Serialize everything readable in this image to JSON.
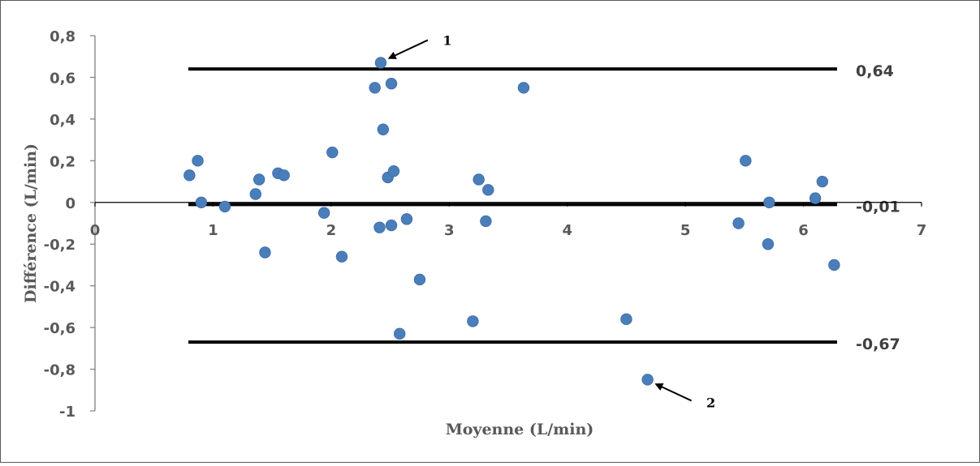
{
  "chart_data": {
    "type": "scatter",
    "title": "",
    "xlabel": "Moyenne (L/min)",
    "ylabel": "Différence (L/min)",
    "xlim": [
      0,
      7
    ],
    "ylim": [
      -1,
      0.8
    ],
    "x_ticks": [
      "0",
      "1",
      "2",
      "3",
      "4",
      "5",
      "6",
      "7"
    ],
    "y_ticks": [
      "0,8",
      "0,6",
      "0,4",
      "0,2",
      "0",
      "-0,2",
      "-0,4",
      "-0,6",
      "-0,8",
      "-1"
    ],
    "grid": false,
    "legend": "none",
    "point_color": "#4a7ebb",
    "reference_lines": [
      {
        "value": 0.64,
        "label": "0,64"
      },
      {
        "value": -0.01,
        "label": "-0,01"
      },
      {
        "value": -0.67,
        "label": "-0,67"
      }
    ],
    "annotations": [
      {
        "text": "1",
        "target": [
          2.42,
          0.67
        ]
      },
      {
        "text": "2",
        "target": [
          4.68,
          -0.85
        ]
      }
    ],
    "points": [
      [
        0.8,
        0.13
      ],
      [
        0.87,
        0.2
      ],
      [
        0.9,
        0.0
      ],
      [
        1.1,
        -0.02
      ],
      [
        1.36,
        0.04
      ],
      [
        1.39,
        0.11
      ],
      [
        1.44,
        -0.24
      ],
      [
        1.55,
        0.14
      ],
      [
        1.6,
        0.13
      ],
      [
        1.94,
        -0.05
      ],
      [
        2.01,
        0.24
      ],
      [
        2.09,
        -0.26
      ],
      [
        2.37,
        0.55
      ],
      [
        2.41,
        -0.12
      ],
      [
        2.42,
        0.67
      ],
      [
        2.44,
        0.35
      ],
      [
        2.48,
        0.12
      ],
      [
        2.51,
        0.57
      ],
      [
        2.51,
        -0.11
      ],
      [
        2.53,
        0.15
      ],
      [
        2.58,
        -0.63
      ],
      [
        2.64,
        -0.08
      ],
      [
        2.75,
        -0.37
      ],
      [
        3.2,
        -0.57
      ],
      [
        3.25,
        0.11
      ],
      [
        3.31,
        -0.09
      ],
      [
        3.33,
        0.06
      ],
      [
        3.63,
        0.55
      ],
      [
        4.5,
        -0.56
      ],
      [
        4.68,
        -0.85
      ],
      [
        5.45,
        -0.1
      ],
      [
        5.51,
        0.2
      ],
      [
        5.7,
        -0.2
      ],
      [
        5.71,
        0.0
      ],
      [
        6.1,
        0.02
      ],
      [
        6.16,
        0.1
      ],
      [
        6.26,
        -0.3
      ]
    ]
  }
}
